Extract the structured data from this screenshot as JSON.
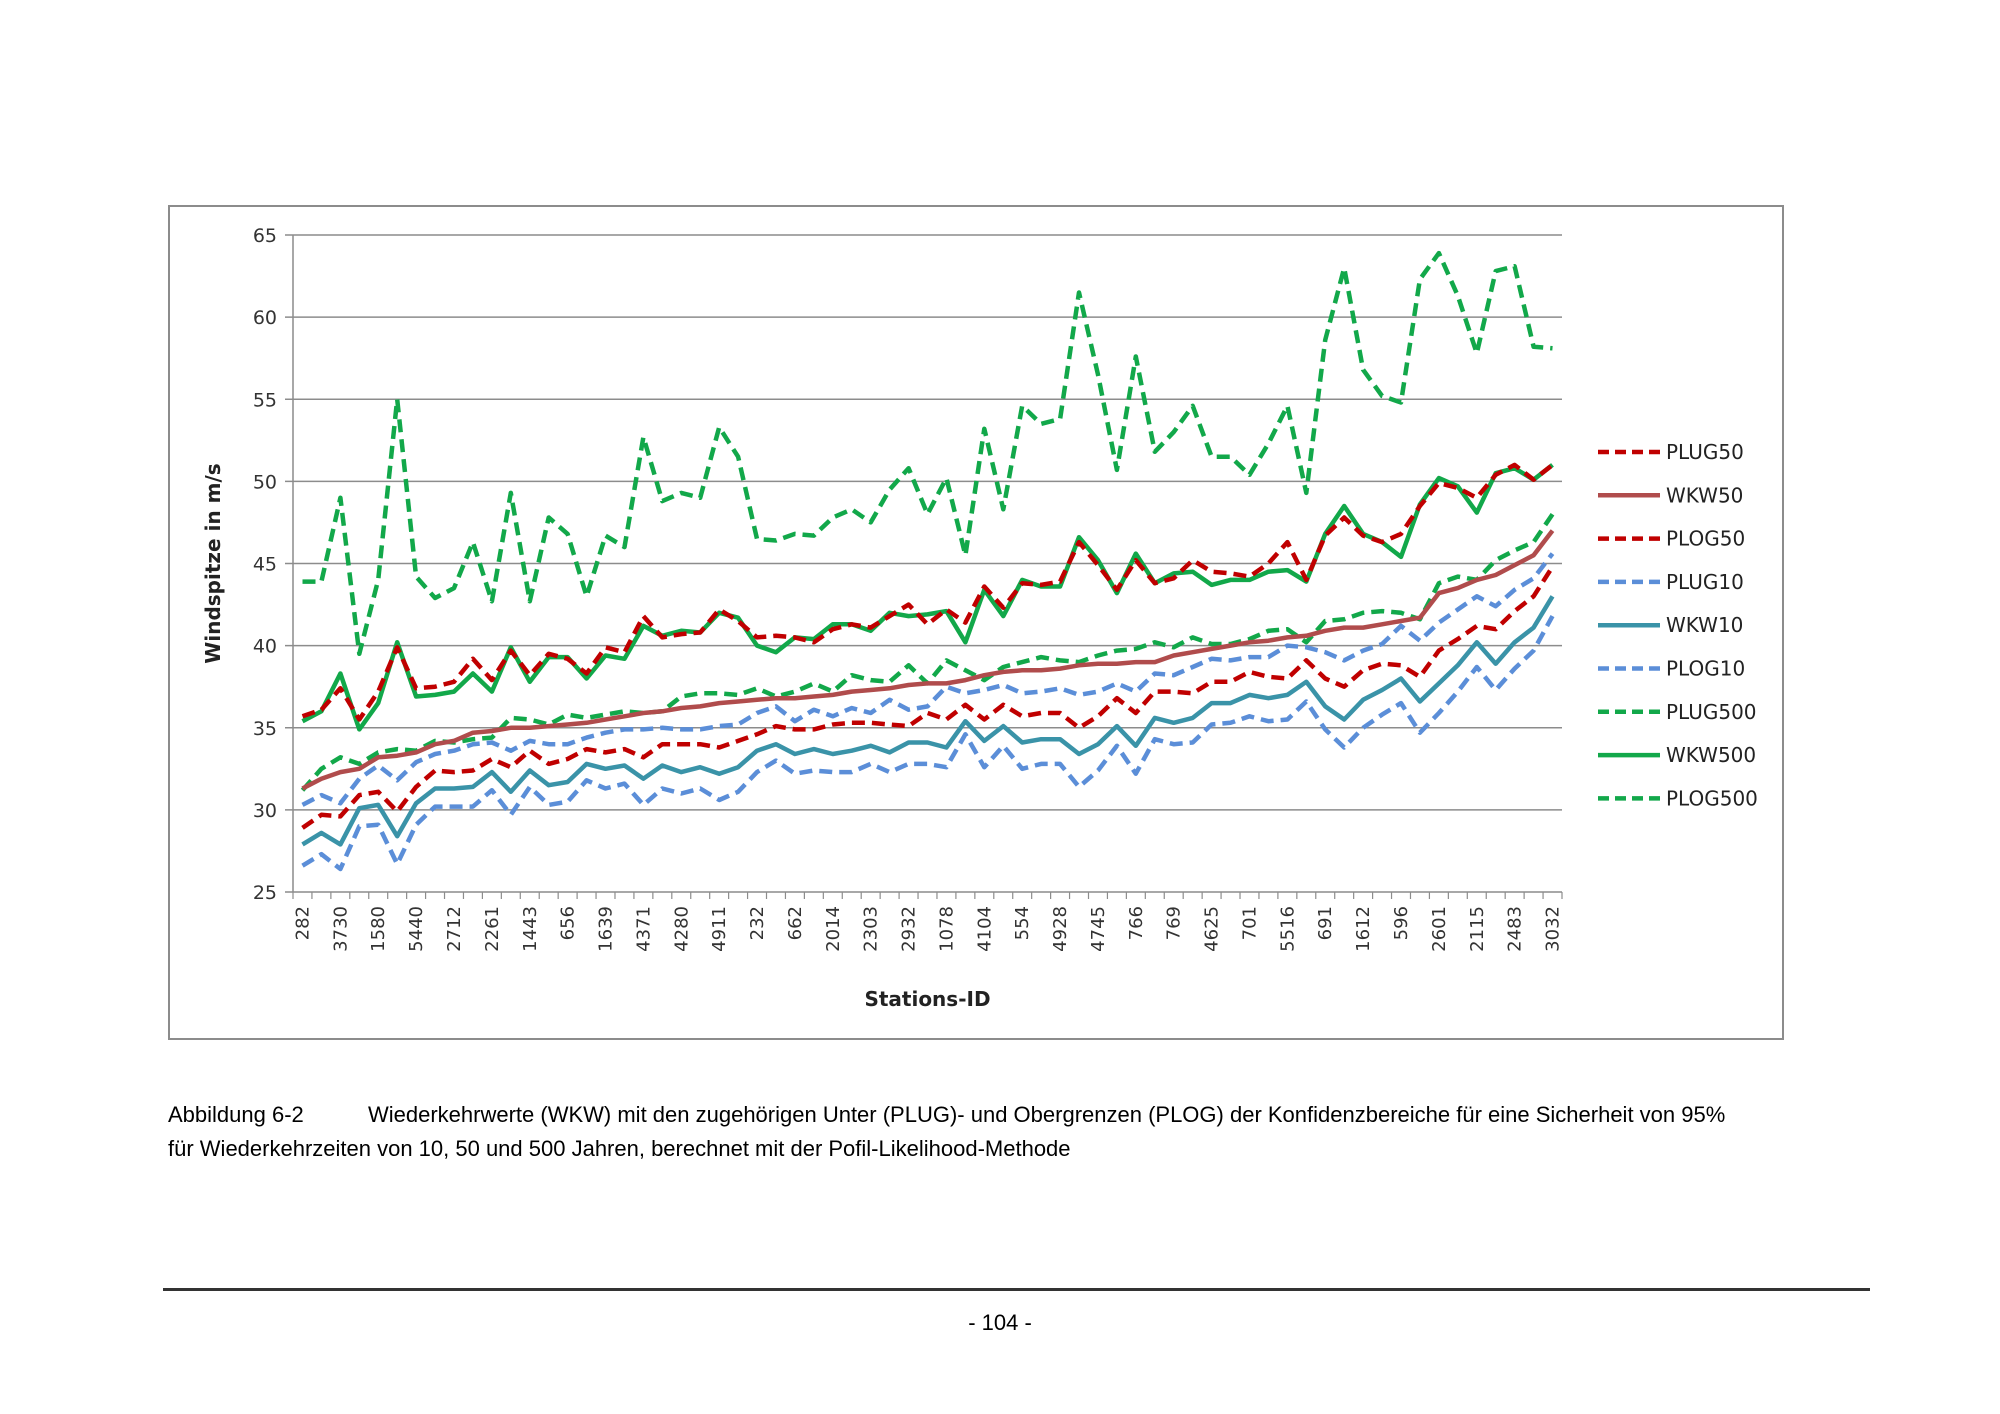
{
  "chart_data": {
    "type": "line",
    "title": "",
    "xlabel": "Stations-ID",
    "ylabel": "Windspitze in m/s",
    "ylim": [
      25,
      65
    ],
    "yticks": [
      25,
      30,
      35,
      40,
      45,
      50,
      55,
      60,
      65
    ],
    "grid": true,
    "legend_position": "right",
    "x_tick_labels": [
      "282",
      "3730",
      "1580",
      "5440",
      "2712",
      "2261",
      "1443",
      "656",
      "1639",
      "4371",
      "4280",
      "4911",
      "232",
      "662",
      "2014",
      "2303",
      "2932",
      "1078",
      "4104",
      "554",
      "4928",
      "4745",
      "766",
      "769",
      "4625",
      "701",
      "5516",
      "691",
      "1612",
      "596",
      "2601",
      "2115",
      "2483",
      "3032"
    ],
    "x_tick_label_every": 2,
    "n_points": 67,
    "series": [
      {
        "name": "PLUG50",
        "color": "#c00000",
        "dash": true,
        "values": [
          35.7,
          36.1,
          37.4,
          35.5,
          37.2,
          39.9,
          37.4,
          37.5,
          37.8,
          39.2,
          37.9,
          39.7,
          38.2,
          39.5,
          39.2,
          38.3,
          39.9,
          39.6,
          41.8,
          40.5,
          40.7,
          40.8,
          42.2,
          41.5,
          40.5,
          40.6,
          40.5,
          40.2,
          41.0,
          41.3,
          41.1,
          41.8,
          42.5,
          41.3,
          42.2,
          41.4,
          43.6,
          42.3,
          43.8,
          43.7,
          43.9,
          46.3,
          44.9,
          43.4,
          45.2,
          43.8,
          44.1,
          45.2,
          44.5,
          44.4,
          44.2,
          45.0,
          46.3,
          44.0,
          46.7,
          47.8,
          46.7,
          46.3,
          46.8,
          48.5,
          49.9,
          49.6,
          49.0,
          50.4,
          51.0,
          50.1,
          51.0
        ]
      },
      {
        "name": "WKW50",
        "color": "#b04c4c",
        "dash": false,
        "values": [
          31.3,
          31.9,
          32.3,
          32.5,
          33.2,
          33.3,
          33.5,
          34.0,
          34.2,
          34.7,
          34.8,
          35.0,
          35.0,
          35.1,
          35.2,
          35.3,
          35.5,
          35.7,
          35.9,
          36.0,
          36.2,
          36.3,
          36.5,
          36.6,
          36.7,
          36.8,
          36.8,
          36.9,
          37.0,
          37.2,
          37.3,
          37.4,
          37.6,
          37.7,
          37.7,
          37.9,
          38.2,
          38.4,
          38.5,
          38.5,
          38.6,
          38.8,
          38.9,
          38.9,
          39.0,
          39.0,
          39.4,
          39.6,
          39.8,
          40.0,
          40.2,
          40.3,
          40.5,
          40.6,
          40.9,
          41.1,
          41.1,
          41.3,
          41.5,
          41.7,
          43.2,
          43.5,
          44.0,
          44.3,
          44.9,
          45.5,
          47.0
        ]
      },
      {
        "name": "PLOG50",
        "color": "#c00000",
        "dash": true,
        "values": [
          28.9,
          29.7,
          29.6,
          30.9,
          31.1,
          29.9,
          31.4,
          32.4,
          32.3,
          32.4,
          33.1,
          32.6,
          33.6,
          32.8,
          33.1,
          33.7,
          33.5,
          33.7,
          33.2,
          34.0,
          34.0,
          34.0,
          33.8,
          34.2,
          34.6,
          35.1,
          34.9,
          34.9,
          35.2,
          35.3,
          35.3,
          35.2,
          35.1,
          35.9,
          35.5,
          36.4,
          35.5,
          36.4,
          35.7,
          35.9,
          35.9,
          35.0,
          35.7,
          36.8,
          35.9,
          37.2,
          37.2,
          37.1,
          37.8,
          37.8,
          38.4,
          38.1,
          38.0,
          39.1,
          38.0,
          37.5,
          38.5,
          38.9,
          38.8,
          38.1,
          39.7,
          40.4,
          41.2,
          41.0,
          42.1,
          43.0,
          44.8
        ]
      },
      {
        "name": "PLUG10",
        "color": "#5b8ed8",
        "dash": true,
        "values": [
          30.3,
          30.9,
          30.4,
          31.9,
          32.7,
          31.8,
          32.9,
          33.4,
          33.6,
          34.0,
          34.1,
          33.6,
          34.2,
          34.0,
          34.0,
          34.4,
          34.7,
          34.9,
          34.9,
          35.0,
          34.9,
          34.9,
          35.1,
          35.2,
          35.9,
          36.3,
          35.4,
          36.1,
          35.7,
          36.2,
          35.9,
          36.7,
          36.1,
          36.3,
          37.5,
          37.1,
          37.3,
          37.6,
          37.1,
          37.2,
          37.4,
          37.0,
          37.2,
          37.7,
          37.2,
          38.3,
          38.2,
          38.7,
          39.2,
          39.1,
          39.3,
          39.3,
          40.0,
          39.9,
          39.6,
          39.1,
          39.7,
          40.1,
          41.2,
          40.3,
          41.4,
          42.2,
          43.0,
          42.4,
          43.4,
          44.1,
          45.6
        ]
      },
      {
        "name": "WKW10",
        "color": "#3a93a8",
        "dash": false,
        "values": [
          27.9,
          28.6,
          27.9,
          30.1,
          30.3,
          28.4,
          30.4,
          31.3,
          31.3,
          31.4,
          32.3,
          31.1,
          32.4,
          31.5,
          31.7,
          32.8,
          32.5,
          32.7,
          31.9,
          32.7,
          32.3,
          32.6,
          32.2,
          32.6,
          33.6,
          34.0,
          33.4,
          33.7,
          33.4,
          33.6,
          33.9,
          33.5,
          34.1,
          34.1,
          33.8,
          35.4,
          34.2,
          35.1,
          34.1,
          34.3,
          34.3,
          33.4,
          34.0,
          35.1,
          33.9,
          35.6,
          35.3,
          35.6,
          36.5,
          36.5,
          37.0,
          36.8,
          37.0,
          37.8,
          36.3,
          35.5,
          36.7,
          37.3,
          38.0,
          36.6,
          37.7,
          38.8,
          40.2,
          38.9,
          40.2,
          41.1,
          43.0
        ]
      },
      {
        "name": "PLOG10",
        "color": "#5b8ed8",
        "dash": true,
        "values": [
          26.6,
          27.3,
          26.4,
          29.0,
          29.1,
          26.7,
          29.1,
          30.2,
          30.2,
          30.2,
          31.2,
          29.7,
          31.4,
          30.3,
          30.5,
          31.8,
          31.3,
          31.6,
          30.3,
          31.3,
          31.0,
          31.3,
          30.6,
          31.1,
          32.3,
          33.0,
          32.2,
          32.4,
          32.3,
          32.3,
          32.8,
          32.3,
          32.8,
          32.8,
          32.6,
          34.6,
          32.6,
          33.9,
          32.5,
          32.8,
          32.8,
          31.4,
          32.4,
          33.9,
          32.2,
          34.3,
          34.0,
          34.1,
          35.2,
          35.3,
          35.7,
          35.4,
          35.5,
          36.6,
          34.9,
          33.8,
          35.0,
          35.8,
          36.5,
          34.7,
          35.9,
          37.2,
          38.7,
          37.3,
          38.6,
          39.7,
          41.8
        ]
      },
      {
        "name": "PLUG500",
        "color": "#12a84a",
        "dash": true,
        "values": [
          31.2,
          32.5,
          33.2,
          32.8,
          33.5,
          33.7,
          33.6,
          34.2,
          34.1,
          34.3,
          34.4,
          35.6,
          35.5,
          35.2,
          35.8,
          35.6,
          35.8,
          36.0,
          35.9,
          36.0,
          36.9,
          37.1,
          37.1,
          37.0,
          37.4,
          36.9,
          37.2,
          37.7,
          37.2,
          38.2,
          37.9,
          37.8,
          38.8,
          37.7,
          39.1,
          38.5,
          37.9,
          38.7,
          39.0,
          39.3,
          39.1,
          39.0,
          39.4,
          39.7,
          39.8,
          40.2,
          39.9,
          40.5,
          40.1,
          40.1,
          40.4,
          40.9,
          41.0,
          40.2,
          41.5,
          41.6,
          42.0,
          42.1,
          42.0,
          41.6,
          43.8,
          44.2,
          44.0,
          45.2,
          45.8,
          46.3,
          48.0
        ]
      },
      {
        "name": "WKW500",
        "color": "#12a84a",
        "dash": false,
        "values": [
          35.4,
          36.0,
          38.3,
          34.9,
          36.5,
          40.2,
          36.9,
          37.0,
          37.2,
          38.3,
          37.2,
          39.9,
          37.8,
          39.3,
          39.3,
          38.0,
          39.4,
          39.2,
          41.2,
          40.6,
          40.9,
          40.8,
          42.0,
          41.7,
          40.0,
          39.6,
          40.5,
          40.4,
          41.3,
          41.3,
          40.9,
          42.0,
          41.8,
          41.9,
          42.1,
          40.2,
          43.4,
          41.8,
          44.0,
          43.6,
          43.6,
          46.6,
          45.2,
          43.2,
          45.6,
          43.8,
          44.4,
          44.5,
          43.7,
          44.0,
          44.0,
          44.5,
          44.6,
          43.9,
          46.8,
          48.5,
          46.8,
          46.3,
          45.4,
          48.6,
          50.2,
          49.7,
          48.1,
          50.5,
          50.8,
          50.1,
          51.0
        ]
      },
      {
        "name": "PLOG500",
        "color": "#12a84a",
        "dash": true,
        "values": [
          43.9,
          43.9,
          49.0,
          39.5,
          44.0,
          55.0,
          44.2,
          42.9,
          43.5,
          46.3,
          42.7,
          49.3,
          42.7,
          47.8,
          46.8,
          43.0,
          46.7,
          46.0,
          52.7,
          48.8,
          49.3,
          49.0,
          53.3,
          51.5,
          46.5,
          46.4,
          46.8,
          46.7,
          47.8,
          48.3,
          47.5,
          49.5,
          50.8,
          48.0,
          50.2,
          45.5,
          53.2,
          48.3,
          54.6,
          53.5,
          53.8,
          61.5,
          56.5,
          50.7,
          57.6,
          51.8,
          53.0,
          54.6,
          51.5,
          51.5,
          50.4,
          52.3,
          54.6,
          49.3,
          58.6,
          63.0,
          56.8,
          55.2,
          54.8,
          62.3,
          63.9,
          61.3,
          57.8,
          62.8,
          63.1,
          58.2,
          58.1
        ]
      }
    ]
  },
  "caption": {
    "label": "Abbildung 6-2",
    "line1": "Wiederkehrwerte (WKW) mit den zugehörigen Unter (PLUG)- und Obergrenzen (PLOG) der Konfidenzbereiche für eine Sicherheit von 95%",
    "line2": "für Wiederkehrzeiten von 10, 50 und 500 Jahren, berechnet mit der Pofil-Likelihood-Methode"
  },
  "page_number": "- 104 -"
}
